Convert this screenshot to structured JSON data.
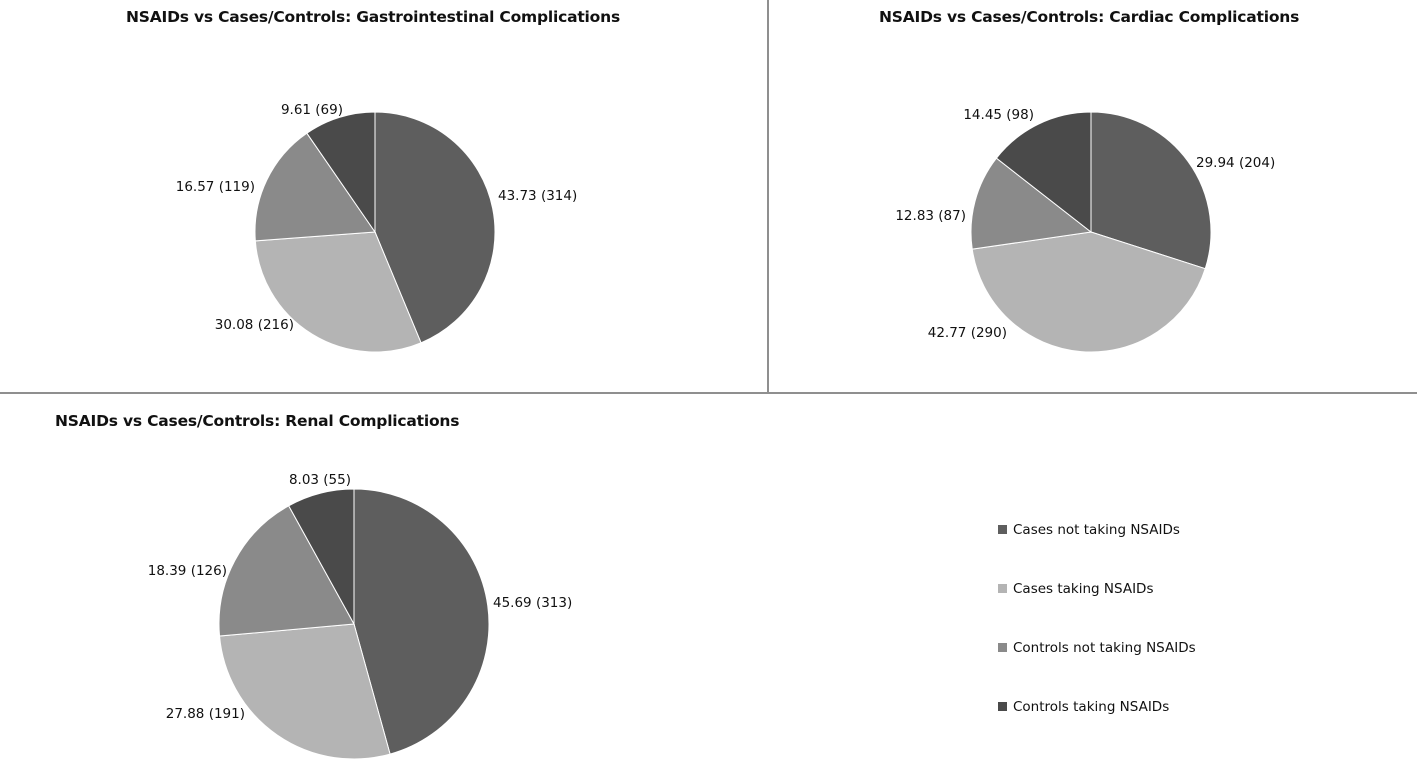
{
  "colors": {
    "Cases not taking NSAIDs": "#5e5e5e",
    "Cases taking NSAIDs": "#b4b4b4",
    "Controls not taking NSAIDs": "#8a8a8a",
    "Controls taking NSAIDs": "#4a4a4a"
  },
  "chart_data": [
    {
      "type": "pie",
      "title": "NSAIDs vs Cases/Controls: Gastrointestinal Complications",
      "labels": [
        "Cases not taking NSAIDs",
        "Cases taking NSAIDs",
        "Controls not taking NSAIDs",
        "Controls taking NSAIDs"
      ],
      "values": [
        43.73,
        30.08,
        16.57,
        9.61
      ],
      "counts": [
        314,
        216,
        119,
        69
      ],
      "data_labels": [
        "43.73 (314)",
        "30.08 (216)",
        "16.57 (119)",
        "9.61 (69)"
      ],
      "legend": "bottom-right"
    },
    {
      "type": "pie",
      "title": "NSAIDs vs Cases/Controls: Cardiac Complications",
      "labels": [
        "Cases not taking NSAIDs",
        "Cases taking NSAIDs",
        "Controls not taking NSAIDs",
        "Controls taking NSAIDs"
      ],
      "values": [
        29.94,
        42.77,
        12.83,
        14.45
      ],
      "counts": [
        204,
        290,
        87,
        98
      ],
      "data_labels": [
        "29.94 (204)",
        "42.77 (290)",
        "12.83 (87)",
        "14.45 (98)"
      ],
      "legend": "bottom-right"
    },
    {
      "type": "pie",
      "title": "NSAIDs vs Cases/Controls: Renal Complications",
      "labels": [
        "Cases not taking NSAIDs",
        "Cases taking NSAIDs",
        "Controls not taking NSAIDs",
        "Controls taking NSAIDs"
      ],
      "values": [
        45.69,
        27.88,
        18.39,
        8.03
      ],
      "counts": [
        313,
        191,
        126,
        55
      ],
      "data_labels": [
        "45.69 (313)",
        "27.88 (191)",
        "18.39 (126)",
        "8.03 (55)"
      ],
      "legend": "bottom-right"
    }
  ],
  "legend": {
    "items": [
      "Cases not taking NSAIDs",
      "Cases taking NSAIDs",
      "Controls not taking NSAIDs",
      "Controls taking NSAIDs"
    ]
  }
}
